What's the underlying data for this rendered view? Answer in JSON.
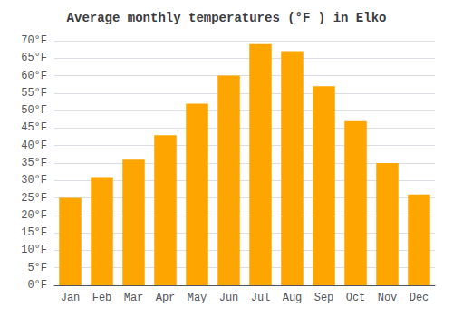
{
  "chart_data": {
    "type": "bar",
    "title": "Average monthly temperatures (°F ) in Elko",
    "categories": [
      "Jan",
      "Feb",
      "Mar",
      "Apr",
      "May",
      "Jun",
      "Jul",
      "Aug",
      "Sep",
      "Oct",
      "Nov",
      "Dec"
    ],
    "values": [
      25,
      31,
      36,
      43,
      52,
      60,
      69,
      67,
      57,
      47,
      35,
      26
    ],
    "color": "#FFA500",
    "ylim": [
      0,
      70
    ],
    "yticks": [
      {
        "value": 0,
        "label": "0°F"
      },
      {
        "value": 5,
        "label": "5°F"
      },
      {
        "value": 10,
        "label": "10°F"
      },
      {
        "value": 15,
        "label": "15°F"
      },
      {
        "value": 20,
        "label": "20°F"
      },
      {
        "value": 25,
        "label": "25°F"
      },
      {
        "value": 30,
        "label": "30°F"
      },
      {
        "value": 35,
        "label": "35°F"
      },
      {
        "value": 40,
        "label": "40°F"
      },
      {
        "value": 45,
        "label": "45°F"
      },
      {
        "value": 50,
        "label": "50°F"
      },
      {
        "value": 55,
        "label": "55°F"
      },
      {
        "value": 60,
        "label": "60°F"
      },
      {
        "value": 65,
        "label": "65°F"
      },
      {
        "value": 70,
        "label": "70°F"
      }
    ],
    "grid": true
  }
}
